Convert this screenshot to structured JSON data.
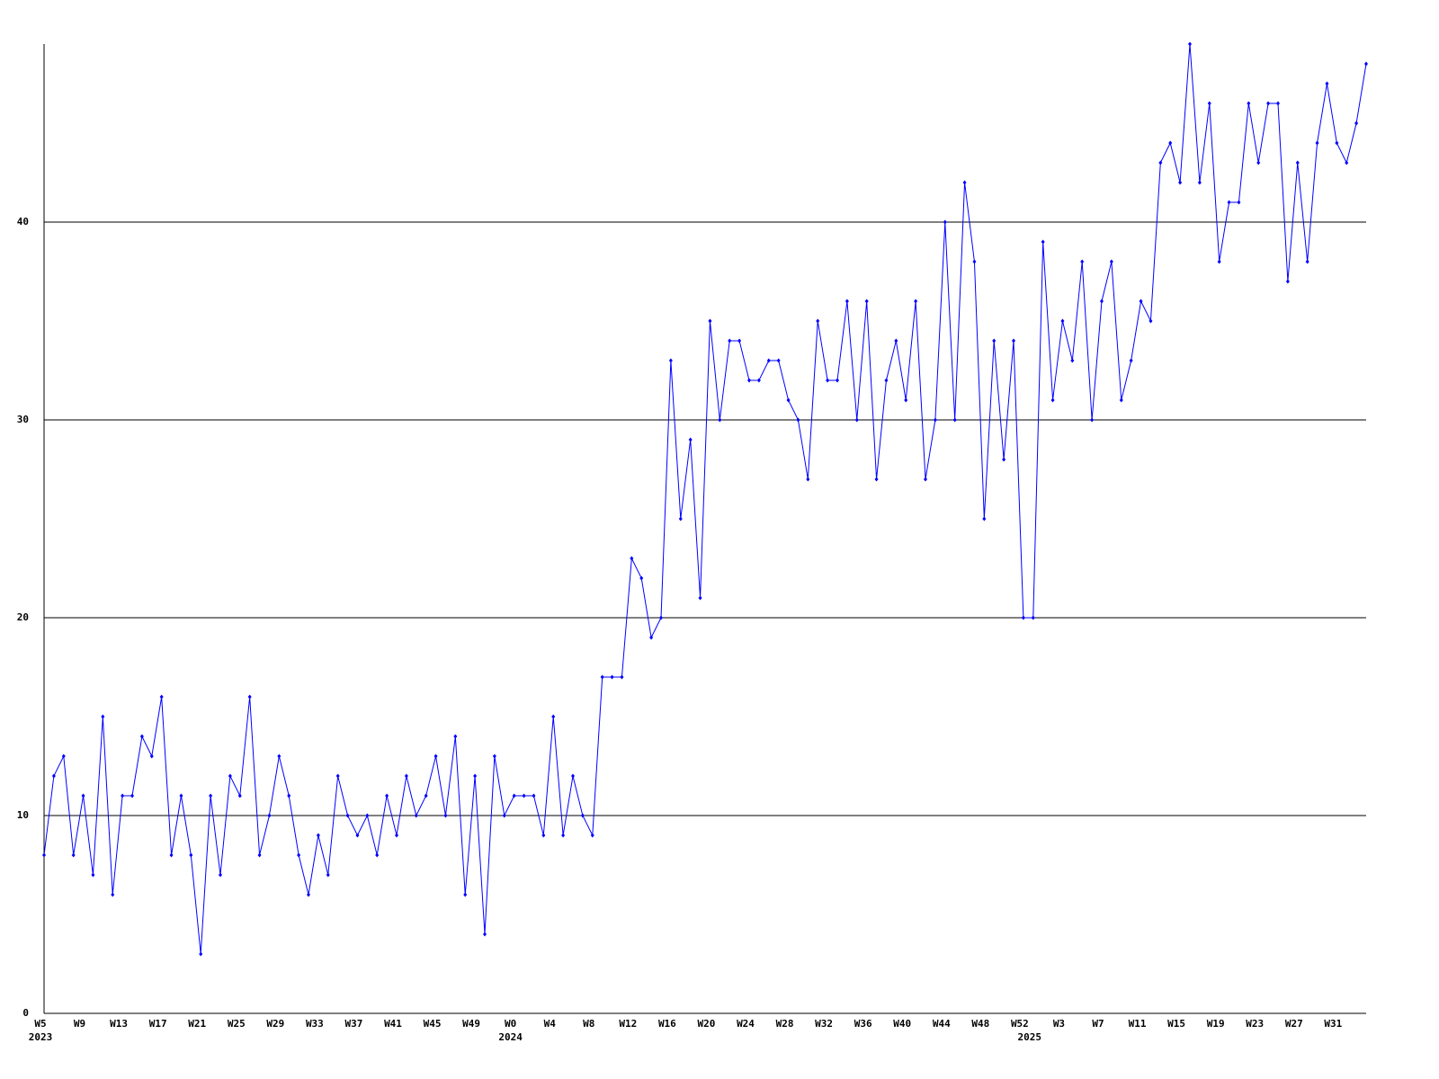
{
  "chart_data": {
    "type": "line",
    "categories": [
      "W5",
      null,
      null,
      null,
      "W9",
      null,
      null,
      null,
      "W13",
      null,
      null,
      null,
      "W17",
      null,
      null,
      null,
      "W21",
      null,
      null,
      null,
      "W25",
      null,
      null,
      null,
      "W29",
      null,
      null,
      null,
      "W33",
      null,
      null,
      null,
      "W37",
      null,
      null,
      null,
      "W41",
      null,
      null,
      null,
      "W45",
      null,
      null,
      null,
      "W49",
      null,
      null,
      null,
      "W0",
      null,
      null,
      null,
      "W4",
      null,
      null,
      null,
      "W8",
      null,
      null,
      null,
      "W12",
      null,
      null,
      null,
      "W16",
      null,
      null,
      null,
      "W20",
      null,
      null,
      null,
      "W24",
      null,
      null,
      null,
      "W28",
      null,
      null,
      null,
      "W32",
      null,
      null,
      null,
      "W36",
      null,
      null,
      null,
      "W40",
      null,
      null,
      null,
      "W44",
      null,
      null,
      null,
      "W48",
      null,
      null,
      null,
      "W52",
      null,
      null,
      null,
      "W3",
      null,
      null,
      null,
      "W7",
      null,
      null,
      null,
      "W11",
      null,
      null,
      null,
      "W15",
      null,
      null,
      null,
      "W19",
      null,
      null,
      null,
      "W23",
      null,
      null,
      null,
      "W27",
      null,
      null,
      null,
      "W31",
      null,
      null,
      null
    ],
    "category_years": [
      "2023",
      null,
      null,
      null,
      null,
      null,
      null,
      null,
      null,
      null,
      null,
      null,
      null,
      null,
      null,
      null,
      null,
      null,
      null,
      null,
      null,
      null,
      null,
      null,
      null,
      null,
      null,
      null,
      null,
      null,
      null,
      null,
      null,
      null,
      null,
      null,
      null,
      null,
      null,
      null,
      null,
      null,
      null,
      null,
      null,
      null,
      null,
      null,
      "2024",
      null,
      null,
      null,
      null,
      null,
      null,
      null,
      null,
      null,
      null,
      null,
      null,
      null,
      null,
      null,
      null,
      null,
      null,
      null,
      null,
      null,
      null,
      null,
      null,
      null,
      null,
      null,
      null,
      null,
      null,
      null,
      null,
      null,
      null,
      null,
      null,
      null,
      null,
      null,
      null,
      null,
      null,
      null,
      null,
      null,
      null,
      null,
      null,
      null,
      null,
      null,
      null,
      "2025",
      null,
      null,
      null,
      null,
      null,
      null,
      null,
      null,
      null,
      null,
      null,
      null,
      null,
      null,
      null,
      null,
      null,
      null,
      null,
      null,
      null,
      null,
      null,
      null,
      null,
      null,
      null,
      null,
      null,
      null,
      null,
      null,
      null,
      null
    ],
    "series": [
      {
        "color": "#0000ff",
        "values": [
          8,
          12,
          13,
          8,
          11,
          7,
          15,
          6,
          11,
          11,
          14,
          13,
          16,
          8,
          11,
          8,
          3,
          11,
          7,
          12,
          11,
          16,
          8,
          10,
          13,
          11,
          8,
          6,
          9,
          7,
          12,
          10,
          9,
          10,
          8,
          11,
          9,
          12,
          10,
          11,
          13,
          10,
          14,
          6,
          12,
          4,
          13,
          10,
          11,
          11,
          11,
          9,
          15,
          9,
          12,
          10,
          9,
          17,
          17,
          17,
          23,
          22,
          19,
          20,
          33,
          25,
          29,
          21,
          35,
          30,
          34,
          34,
          32,
          32,
          33,
          33,
          31,
          30,
          27,
          35,
          32,
          32,
          36,
          30,
          36,
          27,
          32,
          34,
          31,
          36,
          27,
          30,
          40,
          30,
          42,
          38,
          25,
          34,
          28,
          34,
          20,
          20,
          39,
          31,
          35,
          33,
          38,
          30,
          36,
          38,
          31,
          33,
          36,
          35,
          43,
          44,
          42,
          49,
          42,
          46,
          38,
          41,
          41,
          46,
          43,
          46,
          46,
          37,
          43,
          38,
          44,
          47,
          44,
          43,
          45,
          48
        ]
      }
    ],
    "ylim": [
      0,
      49
    ],
    "yticks": [
      0,
      10,
      20,
      30,
      40
    ],
    "grid": true
  }
}
